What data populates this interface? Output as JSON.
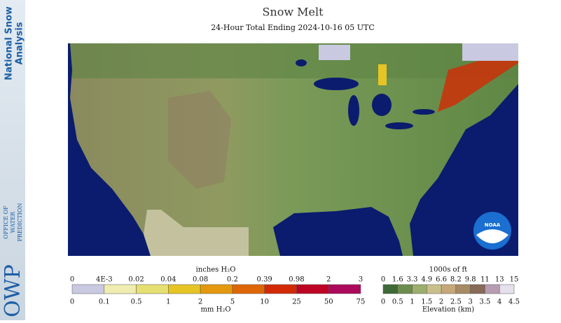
{
  "sidebar": {
    "title_lines": [
      "National Snow",
      "Analysis"
    ],
    "org": "OWP",
    "org_lines": [
      "OFFICE OF",
      "WATER",
      "PREDICTION"
    ]
  },
  "header": {
    "title": "Snow Melt",
    "subtitle": "24-Hour Total Ending 2024-10-16 05 UTC"
  },
  "map": {
    "logo": "NOAA"
  },
  "melt_legend": {
    "top_unit": "inches H₂O",
    "bottom_unit": "mm H₂O",
    "top_labels": [
      "0",
      "4E-3",
      "0.02",
      "0.04",
      "0.08",
      "0.2",
      "0.39",
      "0.98",
      "2",
      "3"
    ],
    "bottom_labels": [
      "0",
      "0.1",
      "0.5",
      "1",
      "2",
      "5",
      "10",
      "25",
      "50",
      "75"
    ],
    "colors": [
      "#c9c9e2",
      "#efedb0",
      "#e6df72",
      "#e6c424",
      "#e5980f",
      "#de6606",
      "#d22a04",
      "#be0424",
      "#ac0a5c"
    ]
  },
  "elev_legend": {
    "top_unit": "1000s of ft",
    "bottom_unit": "Elevation (km)",
    "top_labels": [
      "0",
      "1.6",
      "3.3",
      "4.9",
      "6.6",
      "8.2",
      "9.8",
      "11",
      "13",
      "15"
    ],
    "bottom_labels": [
      "0",
      "0.5",
      "1",
      "1.5",
      "2",
      "2.5",
      "3",
      "3.5",
      "4",
      "4.5"
    ],
    "colors": [
      "#3e6a37",
      "#6d8d4e",
      "#9cae6d",
      "#c9bf8b",
      "#c6a77a",
      "#a78a64",
      "#876a57",
      "#b79cb2",
      "#e4e0ec"
    ]
  }
}
